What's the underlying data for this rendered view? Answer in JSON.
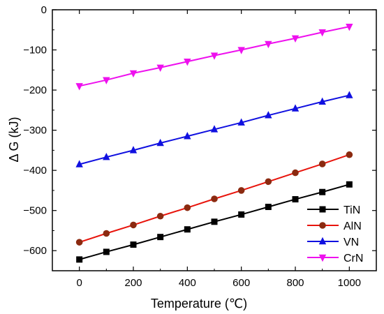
{
  "chart_data": {
    "type": "line",
    "xlabel": "Temperature (℃)",
    "ylabel": "Δ G (kJ)",
    "xlim": [
      -100,
      1100
    ],
    "ylim": [
      -650,
      0
    ],
    "x_ticks": [
      "0",
      "200",
      "400",
      "600",
      "800",
      "1000"
    ],
    "y_ticks": [
      "0",
      "-100",
      "-200",
      "-300",
      "-400",
      "-500",
      "-600"
    ],
    "legend_position": "bottom-right",
    "grid": false,
    "x": [
      0,
      100,
      200,
      300,
      400,
      500,
      600,
      700,
      800,
      900,
      1000
    ],
    "series": [
      {
        "name": "TiN",
        "marker": "square",
        "color": "#000000",
        "values": [
          -622,
          -603,
          -585,
          -566,
          -547,
          -528,
          -510,
          -491,
          -472,
          -454,
          -435
        ]
      },
      {
        "name": "AlN",
        "marker": "circle",
        "color": "#8b2a10",
        "line_color": "#e8140c",
        "values": [
          -579,
          -557,
          -536,
          -514,
          -493,
          -471,
          -450,
          -428,
          -406,
          -384,
          -361
        ]
      },
      {
        "name": "VN",
        "marker": "triangle-up",
        "color": "#1010e0",
        "values": [
          -385,
          -367,
          -350,
          -332,
          -315,
          -298,
          -281,
          -263,
          -246,
          -229,
          -213
        ]
      },
      {
        "name": "CrN",
        "marker": "triangle-down",
        "color": "#ee10ee",
        "values": [
          -190,
          -175,
          -158,
          -144,
          -129,
          -114,
          -100,
          -85,
          -71,
          -56,
          -42
        ]
      }
    ]
  }
}
